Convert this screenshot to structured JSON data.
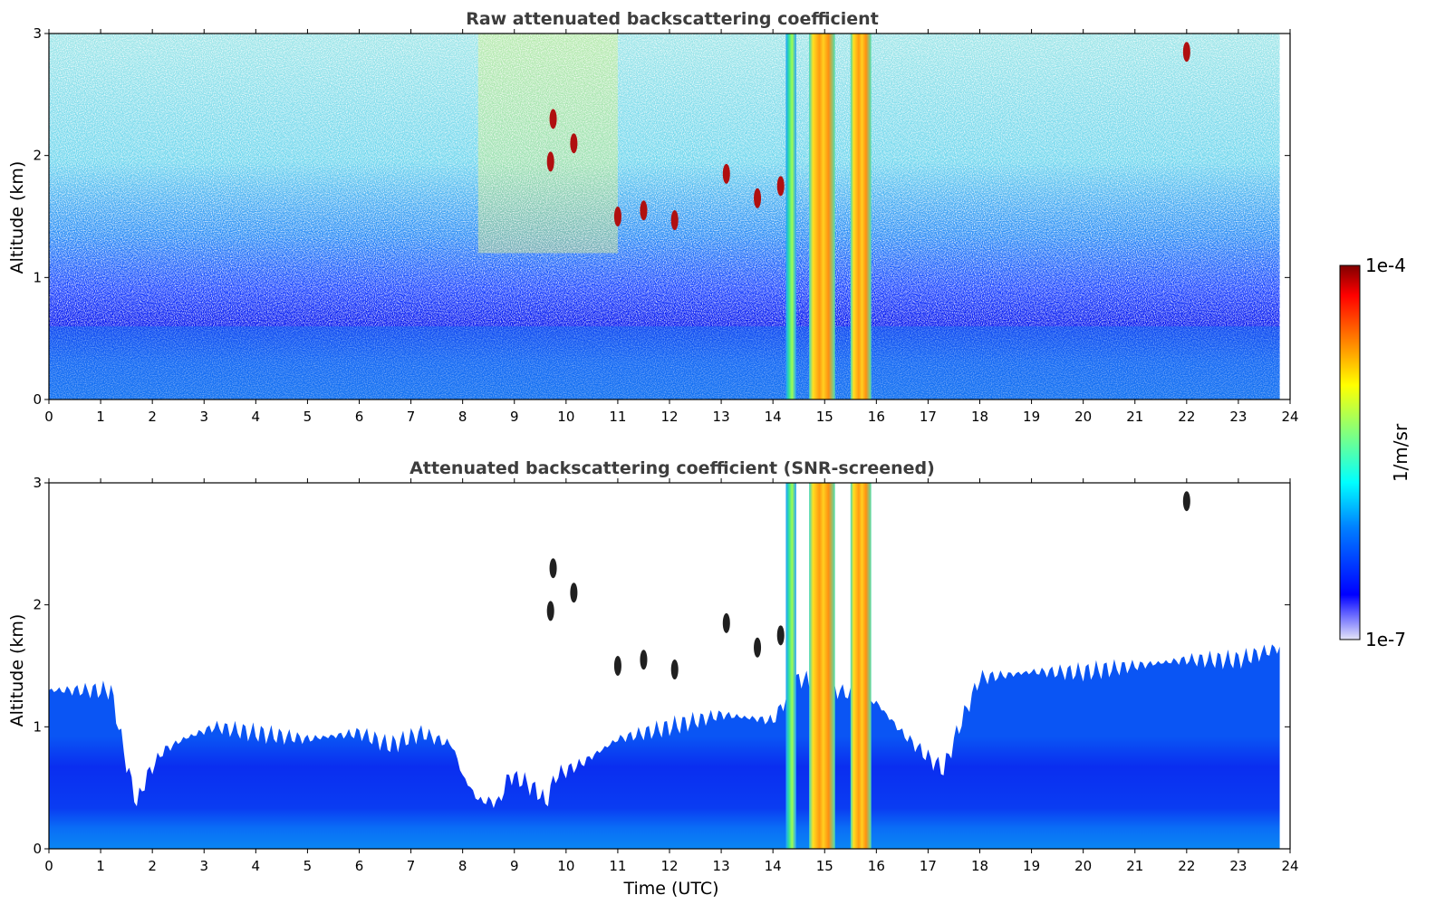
{
  "chart_data": [
    {
      "type": "heatmap",
      "title": "Raw attenuated backscattering coefficient",
      "xlabel": "",
      "ylabel": "Altitude (km)",
      "xlim": [
        0,
        24
      ],
      "ylim": [
        0,
        3
      ],
      "xticks": [
        "0",
        "1",
        "2",
        "3",
        "4",
        "5",
        "6",
        "7",
        "8",
        "9",
        "10",
        "11",
        "12",
        "13",
        "14",
        "15",
        "16",
        "17",
        "18",
        "19",
        "20",
        "21",
        "22",
        "23",
        "24"
      ],
      "yticks": [
        "0",
        "1",
        "2",
        "3"
      ],
      "variant": "raw",
      "data_end_hour": 23.8,
      "features": [
        {
          "type": "boundary_layer",
          "top_km": 0.6
        },
        {
          "type": "precipitation_column",
          "x_start": 14.25,
          "x_end": 14.45
        },
        {
          "type": "precipitation_column",
          "x_start": 14.7,
          "x_end": 15.2
        },
        {
          "type": "precipitation_column",
          "x_start": 15.5,
          "x_end": 15.9
        },
        {
          "type": "cloud",
          "x": 9.7,
          "y_km": 1.95
        },
        {
          "type": "cloud",
          "x": 9.75,
          "y_km": 2.3
        },
        {
          "type": "cloud",
          "x": 10.15,
          "y_km": 2.1
        },
        {
          "type": "cloud",
          "x": 11.0,
          "y_km": 1.5
        },
        {
          "type": "cloud",
          "x": 11.5,
          "y_km": 1.55
        },
        {
          "type": "cloud",
          "x": 12.1,
          "y_km": 1.47
        },
        {
          "type": "cloud",
          "x": 13.1,
          "y_km": 1.85
        },
        {
          "type": "cloud",
          "x": 13.7,
          "y_km": 1.65
        },
        {
          "type": "cloud",
          "x": 14.15,
          "y_km": 1.75
        },
        {
          "type": "cloud",
          "x": 22.0,
          "y_km": 2.85
        }
      ]
    },
    {
      "type": "heatmap",
      "title": "Attenuated backscattering coefficient (SNR-screened)",
      "xlabel": "Time (UTC)",
      "ylabel": "Altitude (km)",
      "xlim": [
        0,
        24
      ],
      "ylim": [
        0,
        3
      ],
      "xticks": [
        "0",
        "1",
        "2",
        "3",
        "4",
        "5",
        "6",
        "7",
        "8",
        "9",
        "10",
        "11",
        "12",
        "13",
        "14",
        "15",
        "16",
        "17",
        "18",
        "19",
        "20",
        "21",
        "22",
        "23",
        "24"
      ],
      "yticks": [
        "0",
        "1",
        "2",
        "3"
      ],
      "variant": "screened",
      "data_end_hour": 23.8,
      "signal_top_km": [
        [
          0,
          1.3
        ],
        [
          1.2,
          1.3
        ],
        [
          1.5,
          0.7
        ],
        [
          1.7,
          0.37
        ],
        [
          1.9,
          0.6
        ],
        [
          2.2,
          0.8
        ],
        [
          2.6,
          0.9
        ],
        [
          3.2,
          1.0
        ],
        [
          4,
          0.95
        ],
        [
          5,
          0.9
        ],
        [
          6,
          0.95
        ],
        [
          6.6,
          0.85
        ],
        [
          7.2,
          0.95
        ],
        [
          7.8,
          0.85
        ],
        [
          8.0,
          0.6
        ],
        [
          8.3,
          0.4
        ],
        [
          8.7,
          0.38
        ],
        [
          8.9,
          0.6
        ],
        [
          9.2,
          0.55
        ],
        [
          9.5,
          0.45
        ],
        [
          9.6,
          0.37
        ],
        [
          9.8,
          0.6
        ],
        [
          10.3,
          0.7
        ],
        [
          11,
          0.9
        ],
        [
          12,
          1.0
        ],
        [
          13,
          1.1
        ],
        [
          14,
          1.05
        ],
        [
          14.5,
          1.4
        ],
        [
          16.0,
          1.2
        ],
        [
          16.5,
          0.95
        ],
        [
          17.0,
          0.75
        ],
        [
          17.3,
          0.65
        ],
        [
          17.6,
          1.0
        ],
        [
          18.0,
          1.4
        ],
        [
          19,
          1.45
        ],
        [
          20,
          1.45
        ],
        [
          21,
          1.5
        ],
        [
          22,
          1.55
        ],
        [
          23,
          1.55
        ],
        [
          23.8,
          1.65
        ]
      ],
      "features": [
        {
          "type": "precipitation_column",
          "x_start": 14.25,
          "x_end": 14.45
        },
        {
          "type": "precipitation_column",
          "x_start": 14.7,
          "x_end": 15.2
        },
        {
          "type": "precipitation_column",
          "x_start": 15.5,
          "x_end": 15.9
        },
        {
          "type": "cloud",
          "x": 9.7,
          "y_km": 1.95
        },
        {
          "type": "cloud",
          "x": 9.75,
          "y_km": 2.3
        },
        {
          "type": "cloud",
          "x": 10.15,
          "y_km": 2.1
        },
        {
          "type": "cloud",
          "x": 11.0,
          "y_km": 1.5
        },
        {
          "type": "cloud",
          "x": 11.5,
          "y_km": 1.55
        },
        {
          "type": "cloud",
          "x": 12.1,
          "y_km": 1.47
        },
        {
          "type": "cloud",
          "x": 13.1,
          "y_km": 1.85
        },
        {
          "type": "cloud",
          "x": 13.7,
          "y_km": 1.65
        },
        {
          "type": "cloud",
          "x": 14.15,
          "y_km": 1.75
        },
        {
          "type": "cloud",
          "x": 22.0,
          "y_km": 2.85
        }
      ]
    }
  ],
  "colorbar": {
    "label": "1/m/sr",
    "max_label": "1e-4",
    "min_label": "1e-7",
    "scale": "log",
    "colormap": "jet",
    "colors": [
      "#e4e4f8",
      "#0000ff",
      "#00a0ff",
      "#00ffff",
      "#80ff80",
      "#ffff00",
      "#ff8000",
      "#ff0000",
      "#800000"
    ]
  }
}
